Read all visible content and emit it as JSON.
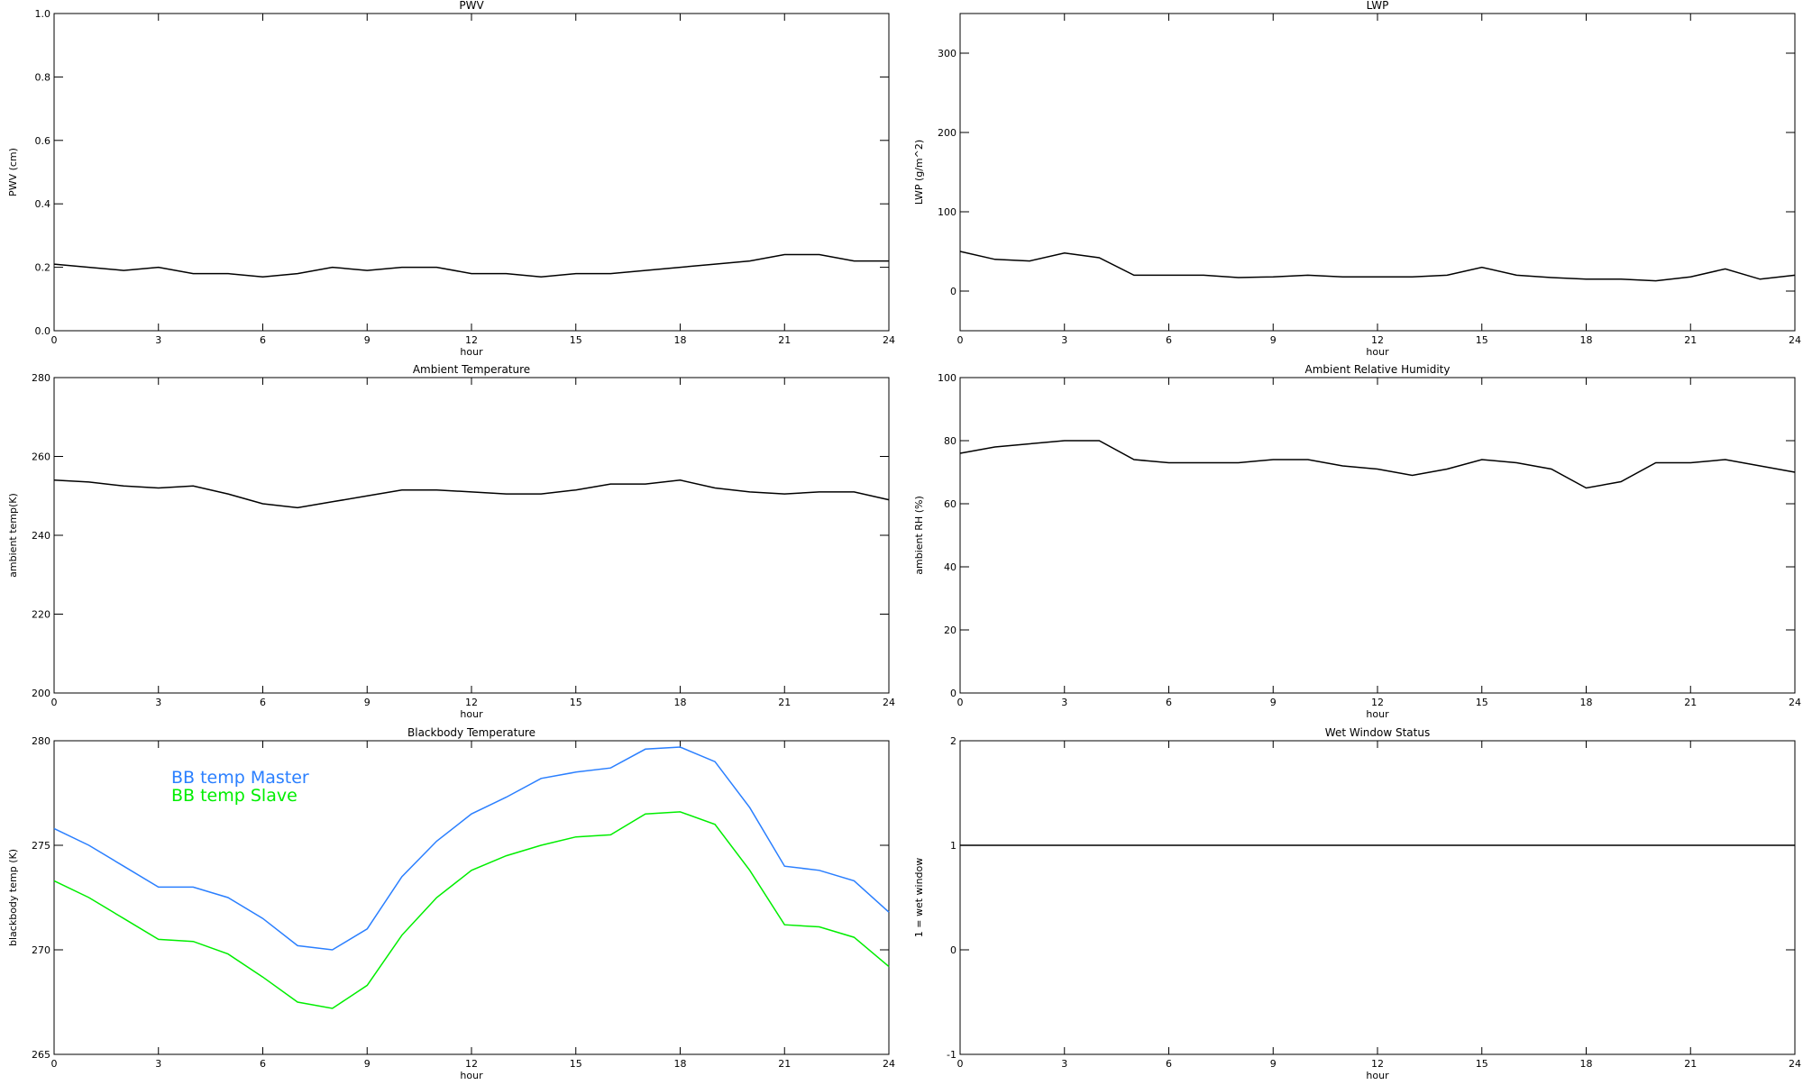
{
  "chart_data": [
    {
      "type": "line",
      "title": "PWV",
      "xlabel": "hour",
      "ylabel": "PWV (cm)",
      "xlim": [
        0,
        24
      ],
      "xticks": [
        0,
        3,
        6,
        9,
        12,
        15,
        18,
        21,
        24
      ],
      "ylim": [
        0,
        1
      ],
      "yticks": [
        {
          "value": 0,
          "label": "0.0"
        },
        0.2,
        0.4,
        0.6,
        0.8,
        {
          "value": 1,
          "label": "1.0"
        }
      ],
      "x": [
        0,
        1,
        2,
        3,
        4,
        5,
        6,
        7,
        8,
        9,
        10,
        11,
        12,
        13,
        14,
        15,
        16,
        17,
        18,
        19,
        20,
        21,
        22,
        23,
        24
      ],
      "color": "#000000",
      "values": [
        0.21,
        0.2,
        0.19,
        0.2,
        0.18,
        0.18,
        0.17,
        0.18,
        0.2,
        0.19,
        0.2,
        0.2,
        0.18,
        0.18,
        0.17,
        0.18,
        0.18,
        0.19,
        0.2,
        0.21,
        0.22,
        0.24,
        0.24,
        0.22,
        0.22
      ]
    },
    {
      "type": "line",
      "title": "LWP",
      "xlabel": "hour",
      "ylabel": "LWP (g/m^2)",
      "xlim": [
        0,
        24
      ],
      "xticks": [
        0,
        3,
        6,
        9,
        12,
        15,
        18,
        21,
        24
      ],
      "ylim": [
        -50,
        350
      ],
      "yticks": [
        0,
        100,
        200,
        300
      ],
      "x": [
        0,
        1,
        2,
        3,
        4,
        5,
        6,
        7,
        8,
        9,
        10,
        11,
        12,
        13,
        14,
        15,
        16,
        17,
        18,
        19,
        20,
        21,
        22,
        23,
        24
      ],
      "color": "#000000",
      "values": [
        50,
        40,
        38,
        48,
        42,
        20,
        20,
        20,
        17,
        18,
        20,
        18,
        18,
        18,
        20,
        30,
        20,
        17,
        15,
        15,
        13,
        18,
        28,
        15,
        20
      ]
    },
    {
      "type": "line",
      "title": "Ambient Temperature",
      "xlabel": "hour",
      "ylabel": "ambient temp(K)",
      "xlim": [
        0,
        24
      ],
      "xticks": [
        0,
        3,
        6,
        9,
        12,
        15,
        18,
        21,
        24
      ],
      "ylim": [
        200,
        280
      ],
      "yticks": [
        200,
        220,
        240,
        260,
        280
      ],
      "x": [
        0,
        1,
        2,
        3,
        4,
        5,
        6,
        7,
        8,
        9,
        10,
        11,
        12,
        13,
        14,
        15,
        16,
        17,
        18,
        19,
        20,
        21,
        22,
        23,
        24
      ],
      "color": "#000000",
      "values": [
        254,
        253.5,
        252.5,
        252,
        252.5,
        250.5,
        248,
        247,
        248.5,
        250,
        251.5,
        251.5,
        251,
        250.5,
        250.5,
        251.5,
        253,
        253,
        254,
        252,
        251,
        250.5,
        251,
        251,
        249
      ]
    },
    {
      "type": "line",
      "title": "Ambient Relative Humidity",
      "xlabel": "hour",
      "ylabel": "ambient RH (%)",
      "xlim": [
        0,
        24
      ],
      "xticks": [
        0,
        3,
        6,
        9,
        12,
        15,
        18,
        21,
        24
      ],
      "ylim": [
        0,
        100
      ],
      "yticks": [
        0,
        20,
        40,
        60,
        80,
        100
      ],
      "x": [
        0,
        1,
        2,
        3,
        4,
        5,
        6,
        7,
        8,
        9,
        10,
        11,
        12,
        13,
        14,
        15,
        16,
        17,
        18,
        19,
        20,
        21,
        22,
        23,
        24
      ],
      "color": "#000000",
      "values": [
        76,
        78,
        79,
        80,
        80,
        74,
        73,
        73,
        73,
        74,
        74,
        72,
        71,
        69,
        71,
        74,
        73,
        71,
        65,
        67,
        73,
        73,
        74,
        72,
        70
      ]
    },
    {
      "type": "line",
      "title": "Blackbody Temperature",
      "xlabel": "hour",
      "ylabel": "blackbody temp (K)",
      "xlim": [
        0,
        24
      ],
      "xticks": [
        0,
        3,
        6,
        9,
        12,
        15,
        18,
        21,
        24
      ],
      "ylim": [
        265,
        280
      ],
      "yticks": [
        265,
        270,
        275,
        280
      ],
      "x": [
        0,
        1,
        2,
        3,
        4,
        5,
        6,
        7,
        8,
        9,
        10,
        11,
        12,
        13,
        14,
        15,
        16,
        17,
        18,
        19,
        20,
        21,
        22,
        23,
        24
      ],
      "series": [
        {
          "name": "BB temp Master",
          "color": "#2a7fff",
          "values": [
            275.8,
            275,
            274,
            273,
            273,
            272.5,
            271.5,
            270.2,
            270,
            271,
            273.5,
            275.2,
            276.5,
            277.3,
            278.2,
            278.5,
            278.7,
            279.6,
            279.7,
            279,
            276.8,
            274,
            273.8,
            273.3,
            271.8
          ]
        },
        {
          "name": "BB temp Slave",
          "color": "#00ee00",
          "values": [
            273.3,
            272.5,
            271.5,
            270.5,
            270.4,
            269.8,
            268.7,
            267.5,
            267.2,
            268.3,
            270.7,
            272.5,
            273.8,
            274.5,
            275,
            275.4,
            275.5,
            276.5,
            276.6,
            276,
            273.8,
            271.2,
            271.1,
            270.6,
            269.2
          ]
        }
      ]
    },
    {
      "type": "line",
      "title": "Wet Window Status",
      "xlabel": "hour",
      "ylabel": "1 = wet window",
      "xlim": [
        0,
        24
      ],
      "xticks": [
        0,
        3,
        6,
        9,
        12,
        15,
        18,
        21,
        24
      ],
      "ylim": [
        -1,
        2
      ],
      "yticks": [
        -1,
        0,
        1,
        2
      ],
      "x": [
        0,
        24
      ],
      "color": "#000000",
      "values": [
        1,
        1
      ]
    }
  ]
}
